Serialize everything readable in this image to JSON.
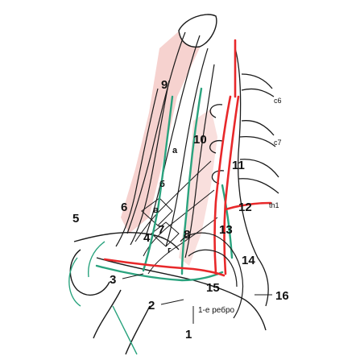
{
  "diagram": {
    "colors": {
      "outline": "#1a1a1a",
      "artery": "#e8282a",
      "vein": "#2aa37e",
      "skin": "#f6d2cf",
      "bone": "#ffffff",
      "nerve": "#6a8a2a"
    },
    "labels": {
      "n1": "1",
      "n2": "2",
      "n3": "3",
      "n4": "4",
      "n5": "5",
      "n6": "6",
      "n7": "7",
      "n8": "8",
      "n9": "9",
      "n10": "10",
      "n11": "11",
      "n12": "12",
      "n13": "13",
      "n14": "14",
      "n15": "15",
      "n16": "16"
    },
    "letters": {
      "a": "a",
      "b": "б",
      "v": "в",
      "g": "г"
    },
    "vertebra_labels": {
      "c6": "c6",
      "c7": "c7",
      "th1": "th1"
    },
    "rib_note": "1-е ребро"
  }
}
